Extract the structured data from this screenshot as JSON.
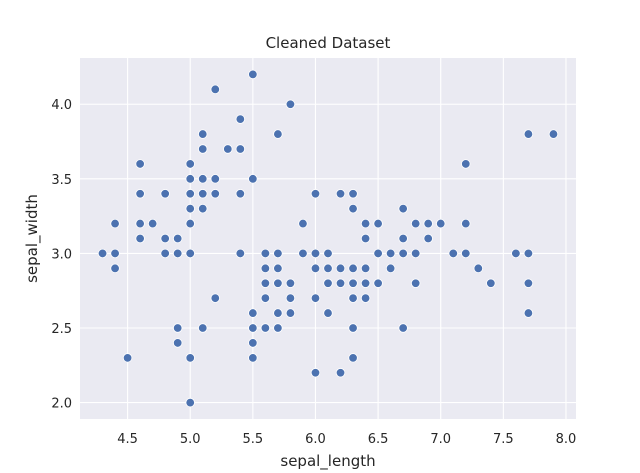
{
  "chart_data": {
    "type": "scatter",
    "title": "Cleaned Dataset",
    "xlabel": "sepal_length",
    "ylabel": "sepal_width",
    "xlim": [
      4.12,
      8.08
    ],
    "ylim": [
      1.89,
      4.31
    ],
    "xticks": [
      4.5,
      5.0,
      5.5,
      6.0,
      6.5,
      7.0,
      7.5,
      8.0
    ],
    "xtick_labels": [
      "4.5",
      "5.0",
      "5.5",
      "6.0",
      "6.5",
      "7.0",
      "7.5",
      "8.0"
    ],
    "yticks": [
      2.0,
      2.5,
      3.0,
      3.5,
      4.0
    ],
    "ytick_labels": [
      "2.0",
      "2.5",
      "3.0",
      "3.5",
      "4.0"
    ],
    "grid": true,
    "point_color": "#4c72b0",
    "background_color": "#eaeaf2",
    "points": [
      [
        4.3,
        3.0
      ],
      [
        4.4,
        3.2
      ],
      [
        4.4,
        3.0
      ],
      [
        4.4,
        2.9
      ],
      [
        4.5,
        2.3
      ],
      [
        4.6,
        3.6
      ],
      [
        4.6,
        3.4
      ],
      [
        4.6,
        3.2
      ],
      [
        4.6,
        3.1
      ],
      [
        4.7,
        3.2
      ],
      [
        4.8,
        3.4
      ],
      [
        4.8,
        3.1
      ],
      [
        4.8,
        3.0
      ],
      [
        4.9,
        3.1
      ],
      [
        4.9,
        3.0
      ],
      [
        4.9,
        2.5
      ],
      [
        4.9,
        2.4
      ],
      [
        5.0,
        3.6
      ],
      [
        5.0,
        3.5
      ],
      [
        5.0,
        3.4
      ],
      [
        5.0,
        3.3
      ],
      [
        5.0,
        3.2
      ],
      [
        5.0,
        3.0
      ],
      [
        5.0,
        2.3
      ],
      [
        5.0,
        2.0
      ],
      [
        5.1,
        3.8
      ],
      [
        5.1,
        3.7
      ],
      [
        5.1,
        3.5
      ],
      [
        5.1,
        3.4
      ],
      [
        5.1,
        3.3
      ],
      [
        5.1,
        2.5
      ],
      [
        5.2,
        4.1
      ],
      [
        5.2,
        3.5
      ],
      [
        5.2,
        3.4
      ],
      [
        5.2,
        2.7
      ],
      [
        5.3,
        3.7
      ],
      [
        5.4,
        3.9
      ],
      [
        5.4,
        3.7
      ],
      [
        5.4,
        3.4
      ],
      [
        5.4,
        3.0
      ],
      [
        5.5,
        4.2
      ],
      [
        5.5,
        3.5
      ],
      [
        5.5,
        2.6
      ],
      [
        5.5,
        2.5
      ],
      [
        5.5,
        2.4
      ],
      [
        5.5,
        2.3
      ],
      [
        5.6,
        3.0
      ],
      [
        5.6,
        2.9
      ],
      [
        5.6,
        2.8
      ],
      [
        5.6,
        2.7
      ],
      [
        5.6,
        2.5
      ],
      [
        5.7,
        3.8
      ],
      [
        5.7,
        3.0
      ],
      [
        5.7,
        2.9
      ],
      [
        5.7,
        2.8
      ],
      [
        5.7,
        2.6
      ],
      [
        5.7,
        2.5
      ],
      [
        5.8,
        4.0
      ],
      [
        5.8,
        2.8
      ],
      [
        5.8,
        2.7
      ],
      [
        5.8,
        2.6
      ],
      [
        5.9,
        3.2
      ],
      [
        5.9,
        3.0
      ],
      [
        6.0,
        3.4
      ],
      [
        6.0,
        3.0
      ],
      [
        6.0,
        2.9
      ],
      [
        6.0,
        2.7
      ],
      [
        6.0,
        2.2
      ],
      [
        6.1,
        3.0
      ],
      [
        6.1,
        2.9
      ],
      [
        6.1,
        2.8
      ],
      [
        6.1,
        2.6
      ],
      [
        6.2,
        3.4
      ],
      [
        6.2,
        2.9
      ],
      [
        6.2,
        2.8
      ],
      [
        6.2,
        2.2
      ],
      [
        6.3,
        3.4
      ],
      [
        6.3,
        3.3
      ],
      [
        6.3,
        2.9
      ],
      [
        6.3,
        2.8
      ],
      [
        6.3,
        2.7
      ],
      [
        6.3,
        2.5
      ],
      [
        6.3,
        2.3
      ],
      [
        6.4,
        3.2
      ],
      [
        6.4,
        3.1
      ],
      [
        6.4,
        2.9
      ],
      [
        6.4,
        2.8
      ],
      [
        6.4,
        2.7
      ],
      [
        6.5,
        3.2
      ],
      [
        6.5,
        3.0
      ],
      [
        6.5,
        2.8
      ],
      [
        6.6,
        3.0
      ],
      [
        6.6,
        2.9
      ],
      [
        6.7,
        3.3
      ],
      [
        6.7,
        3.1
      ],
      [
        6.7,
        3.0
      ],
      [
        6.7,
        2.5
      ],
      [
        6.8,
        3.2
      ],
      [
        6.8,
        3.0
      ],
      [
        6.8,
        2.8
      ],
      [
        6.9,
        3.2
      ],
      [
        6.9,
        3.1
      ],
      [
        7.0,
        3.2
      ],
      [
        7.1,
        3.0
      ],
      [
        7.2,
        3.6
      ],
      [
        7.2,
        3.2
      ],
      [
        7.2,
        3.0
      ],
      [
        7.3,
        2.9
      ],
      [
        7.4,
        2.8
      ],
      [
        7.6,
        3.0
      ],
      [
        7.7,
        3.8
      ],
      [
        7.7,
        3.0
      ],
      [
        7.7,
        2.8
      ],
      [
        7.7,
        2.6
      ],
      [
        7.9,
        3.8
      ]
    ]
  }
}
